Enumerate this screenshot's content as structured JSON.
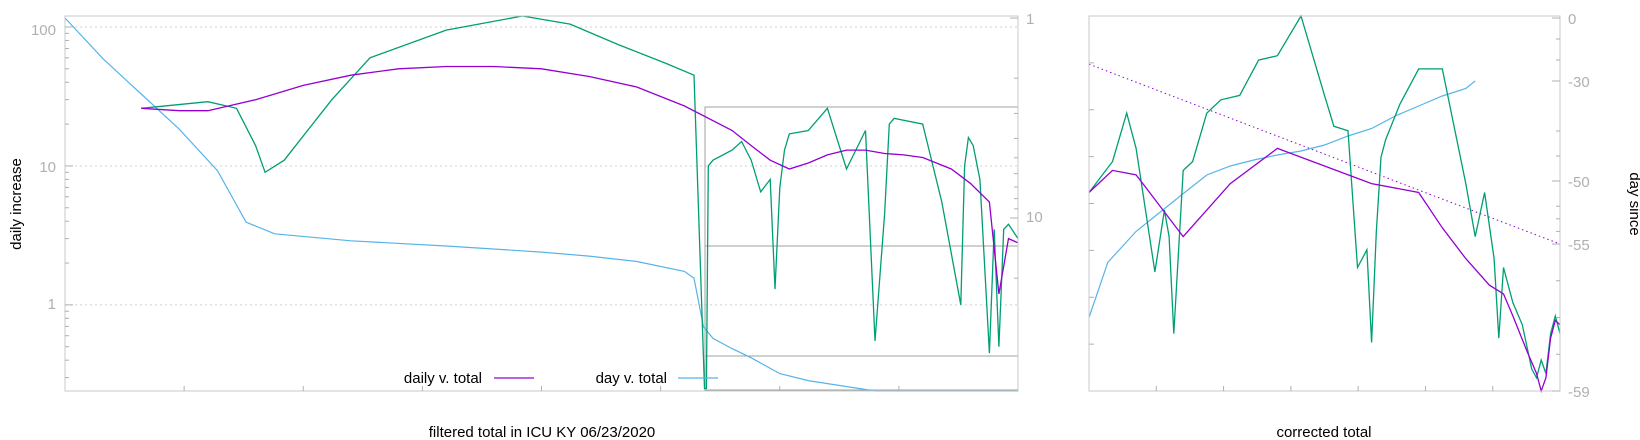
{
  "chart_data": [
    {
      "type": "line",
      "title": "",
      "xlabel": "filtered total in ICU KY 06/23/2020",
      "ylabel": "daily increase",
      "yscale": "log",
      "ylim": [
        0.24,
        120
      ],
      "y_ticks": [
        "100",
        "10",
        "1"
      ],
      "y2_scale": "log",
      "y2_inverted": true,
      "y2_ticks": [
        "1",
        "10"
      ],
      "xlim": [
        0,
        1
      ],
      "grid": true,
      "legend_position": "bottom-center",
      "colors": {
        "daily": "#9400d3",
        "raw": "#009e73",
        "day": "#56b4e9",
        "box": "#a0a0a0"
      },
      "series": [
        {
          "name": "daily v. total",
          "x": [
            0.08,
            0.12,
            0.15,
            0.2,
            0.25,
            0.3,
            0.35,
            0.4,
            0.45,
            0.5,
            0.55,
            0.6,
            0.65,
            0.7,
            0.72,
            0.74,
            0.76,
            0.78,
            0.8,
            0.82,
            0.84,
            0.86,
            0.88,
            0.9,
            0.93,
            0.95,
            0.97,
            0.98,
            0.99,
            1.0
          ],
          "y": [
            26,
            25,
            25,
            30,
            38,
            45,
            50,
            52,
            52,
            50,
            44,
            37,
            27,
            18,
            14,
            11,
            9.5,
            10.5,
            12,
            13,
            13,
            12.3,
            12,
            11.5,
            9.5,
            7.5,
            5.5,
            1.2,
            3.0,
            2.8
          ]
        },
        {
          "name": "",
          "x": [
            0.08,
            0.15,
            0.18,
            0.2,
            0.21,
            0.23,
            0.28,
            0.32,
            0.4,
            0.48,
            0.53,
            0.58,
            0.63,
            0.66,
            0.671,
            0.673,
            0.675,
            0.68,
            0.7,
            0.71,
            0.72,
            0.73,
            0.74,
            0.745,
            0.75,
            0.755,
            0.76,
            0.78,
            0.8,
            0.82,
            0.84,
            0.85,
            0.86,
            0.865,
            0.87,
            0.9,
            0.92,
            0.94,
            0.944,
            0.948,
            0.953,
            0.96,
            0.97,
            0.975,
            0.98,
            0.985,
            0.99,
            1.0
          ],
          "y": [
            26,
            29,
            26,
            14,
            9,
            11,
            30,
            60,
            95,
            120,
            105,
            75,
            55,
            45,
            0.25,
            0.25,
            10,
            11,
            13,
            15,
            11,
            6.5,
            8,
            1.3,
            7,
            13,
            17,
            18,
            26,
            9.5,
            18,
            0.55,
            4.5,
            20,
            22,
            20,
            5.5,
            1.0,
            10,
            16,
            14,
            8,
            0.45,
            3.5,
            0.5,
            3.5,
            3.8,
            3.0
          ]
        },
        {
          "name": "day v. total",
          "x": [
            0.0,
            0.04,
            0.08,
            0.12,
            0.16,
            0.19,
            0.22,
            0.3,
            0.4,
            0.5,
            0.55,
            0.6,
            0.65,
            0.66,
            0.67,
            0.68,
            0.7,
            0.72,
            0.75,
            0.78,
            0.85,
            0.9,
            0.94,
            0.96,
            0.98,
            1.0
          ],
          "y2": [
            1.0,
            1.6,
            2.4,
            3.6,
            5.8,
            10.5,
            12.0,
            13.0,
            13.8,
            14.8,
            15.5,
            16.5,
            18.5,
            20.0,
            35,
            40,
            45,
            50,
            60,
            65,
            75,
            85,
            95,
            105,
            125,
            145
          ]
        }
      ]
    },
    {
      "type": "line",
      "title": "",
      "xlabel": "corrected total",
      "ylabel": "day since",
      "y_ticks": [
        "0",
        "-30",
        "-50",
        "-55",
        "-59"
      ],
      "xlim": [
        0,
        1
      ],
      "grid": false,
      "series": [
        {
          "name": "",
          "x": [
            0.0,
            0.05,
            0.1,
            0.2,
            0.3,
            0.4,
            0.5,
            0.6,
            0.7,
            0.75,
            0.8,
            0.85,
            0.88,
            0.9,
            0.93,
            0.95,
            0.96,
            0.97,
            0.98,
            0.99,
            1.0
          ],
          "y": [
            40,
            45,
            44,
            30,
            42,
            50,
            46,
            42,
            40,
            32,
            25,
            19,
            17,
            12,
            4,
            -1,
            -8,
            -2,
            7,
            11,
            10
          ]
        },
        {
          "name": "",
          "x": [
            0.0,
            0.05,
            0.08,
            0.1,
            0.14,
            0.16,
            0.17,
            0.18,
            0.2,
            0.22,
            0.25,
            0.28,
            0.32,
            0.36,
            0.4,
            0.45,
            0.5,
            0.52,
            0.55,
            0.57,
            0.59,
            0.6,
            0.61,
            0.62,
            0.63,
            0.66,
            0.7,
            0.75,
            0.8,
            0.82,
            0.84,
            0.86,
            0.87,
            0.88,
            0.9,
            0.92,
            0.94,
            0.95,
            0.96,
            0.97,
            0.98,
            0.99,
            1.0
          ],
          "y": [
            40,
            47,
            58,
            50,
            22,
            36,
            30,
            8,
            45,
            47,
            58,
            61,
            62,
            70,
            71,
            80,
            62,
            55,
            54,
            23,
            27,
            6,
            31,
            48,
            52,
            60,
            68,
            68,
            42,
            30,
            40,
            25,
            7,
            23,
            15,
            10,
            0,
            -2,
            2,
            -1,
            8,
            12,
            8
          ]
        },
        {
          "name": "",
          "x": [
            0.0,
            0.04,
            0.1,
            0.15,
            0.2,
            0.25,
            0.3,
            0.35,
            0.4,
            0.45,
            0.5,
            0.55,
            0.6,
            0.65,
            0.7,
            0.75,
            0.8,
            0.82
          ],
          "y2": [
            -57.0,
            -55.5,
            -54.0,
            -52.5,
            -51.0,
            -48.8,
            -47.0,
            -45.8,
            -44.8,
            -44.0,
            -42.8,
            -41.0,
            -39.5,
            -37.0,
            -35.0,
            -33.0,
            -31.5,
            -30.0
          ]
        },
        {
          "name": "",
          "x": [
            0.0,
            1.0
          ],
          "y2": [
            -22,
            -55.0
          ]
        }
      ]
    }
  ]
}
